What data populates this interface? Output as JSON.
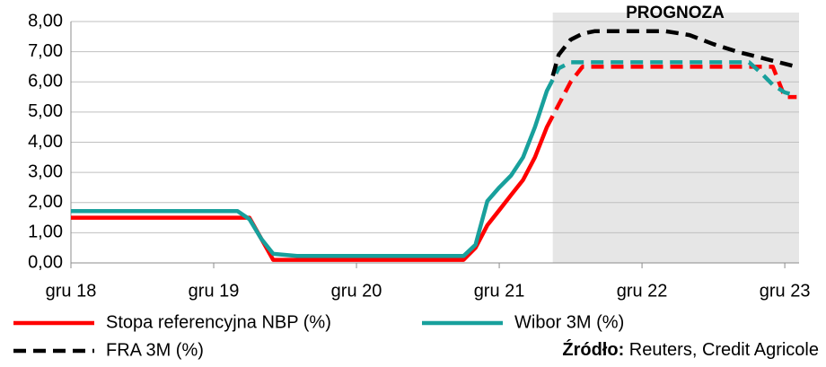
{
  "chart_data": {
    "type": "line",
    "annotation": "PROGNOZA",
    "forecast_start": 40.5,
    "forecast_color": "#e6e6e6",
    "grid": true,
    "xlim": [
      0,
      61.2
    ],
    "xticks": [
      {
        "value": 0,
        "label": "gru 18"
      },
      {
        "value": 12,
        "label": "gru 19"
      },
      {
        "value": 24,
        "label": "gru 20"
      },
      {
        "value": 36,
        "label": "gru 21"
      },
      {
        "value": 48,
        "label": "gru 22"
      },
      {
        "value": 60,
        "label": "gru 23"
      }
    ],
    "ylim": [
      0,
      8
    ],
    "yticks": [
      {
        "value": 0,
        "label": "0,00"
      },
      {
        "value": 1,
        "label": "1,00"
      },
      {
        "value": 2,
        "label": "2,00"
      },
      {
        "value": 3,
        "label": "3,00"
      },
      {
        "value": 4,
        "label": "4,00"
      },
      {
        "value": 5,
        "label": "5,00"
      },
      {
        "value": 6,
        "label": "6,00"
      },
      {
        "value": 7,
        "label": "7,00"
      },
      {
        "value": 8,
        "label": "8,00"
      }
    ],
    "series": [
      {
        "name": "Stopa referencyjna NBP (%)",
        "color": "#ff0000",
        "line_style": "solid",
        "x": [
          0,
          15,
          17,
          33,
          34,
          35,
          36,
          37,
          38,
          39,
          40,
          41,
          42,
          43,
          59,
          60,
          61
        ],
        "values": [
          1.5,
          1.5,
          0.1,
          0.1,
          0.5,
          1.25,
          1.75,
          2.25,
          2.75,
          3.5,
          4.5,
          5.25,
          6.0,
          6.5,
          6.5,
          5.5,
          5.5
        ]
      },
      {
        "name": "Wibor 3M (%)",
        "color": "#18a09c",
        "line_style": "solid",
        "x": [
          0,
          14,
          15,
          16,
          17,
          19,
          33,
          34,
          35,
          36,
          37,
          38,
          39,
          40,
          41,
          42,
          57,
          58,
          59,
          60,
          61
        ],
        "values": [
          1.72,
          1.72,
          1.45,
          0.8,
          0.3,
          0.23,
          0.23,
          0.6,
          2.05,
          2.5,
          2.9,
          3.5,
          4.5,
          5.7,
          6.45,
          6.65,
          6.65,
          6.3,
          5.9,
          5.65,
          5.55
        ]
      },
      {
        "name": "FRA 3M (%)",
        "color": "#000000",
        "line_style": "dashed",
        "x": [
          40.5,
          41,
          42,
          43,
          44,
          50,
          52,
          54,
          56,
          58,
          60,
          61
        ],
        "values": [
          6.2,
          6.9,
          7.4,
          7.6,
          7.68,
          7.68,
          7.55,
          7.25,
          7.0,
          6.8,
          6.6,
          6.5
        ]
      }
    ],
    "source": {
      "label": "Źródło:",
      "text": "Reuters, Credit Agricole"
    }
  }
}
